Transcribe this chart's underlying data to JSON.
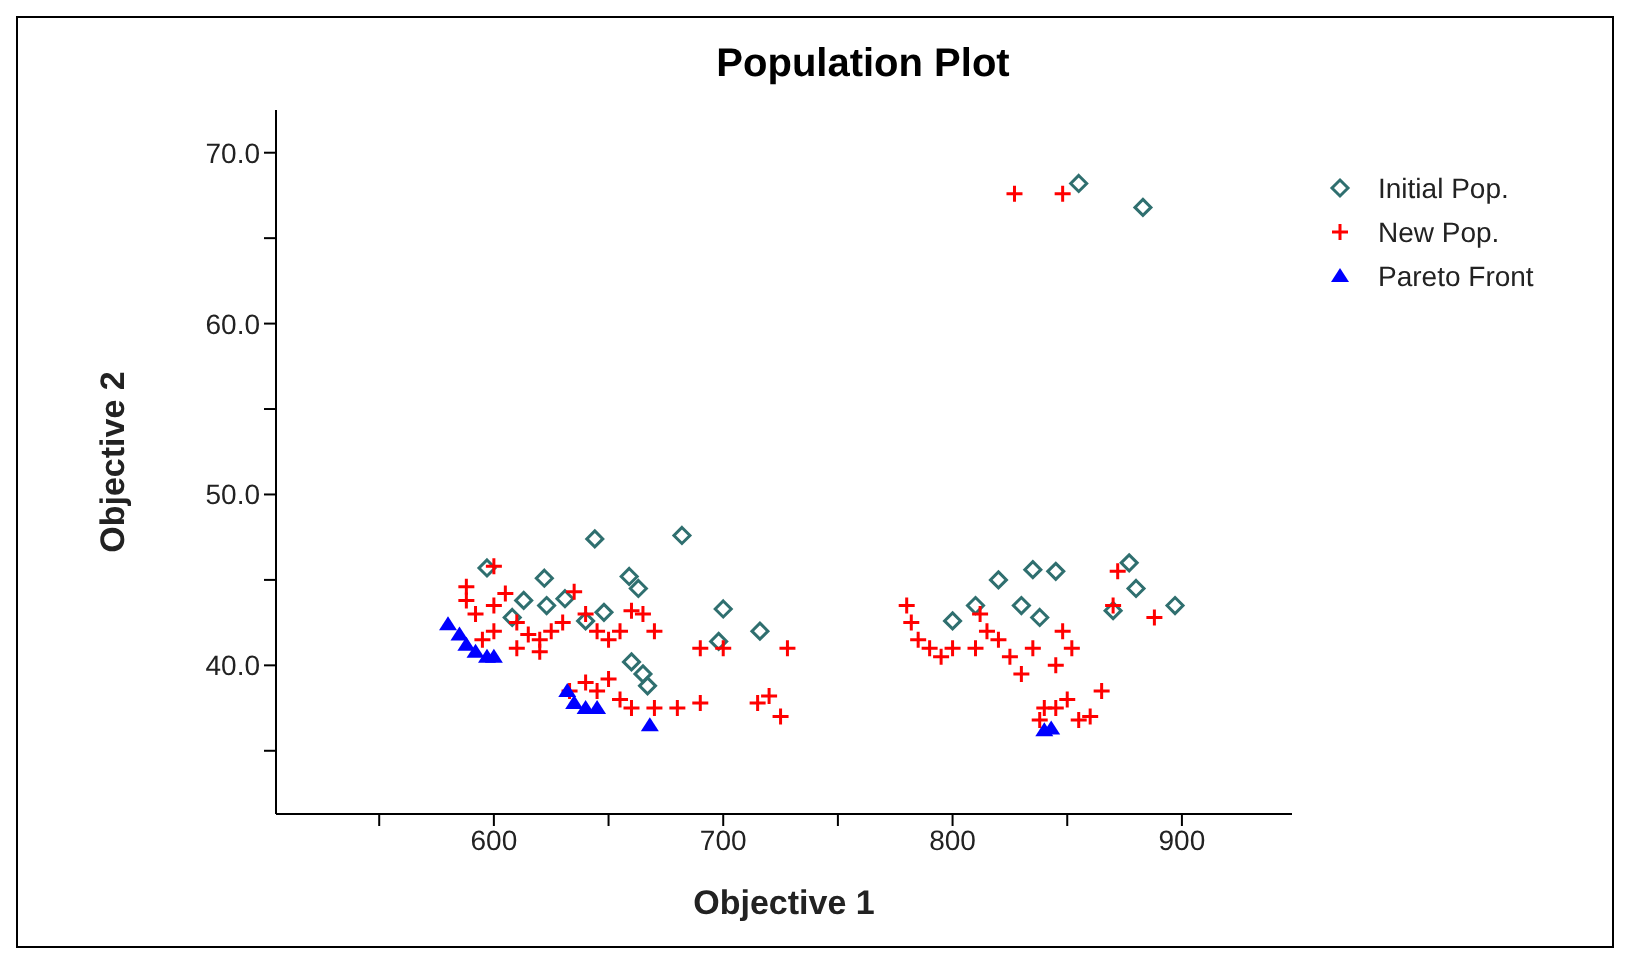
{
  "chart_data": {
    "type": "scatter",
    "title": "Population Plot",
    "xlabel": "Objective 1",
    "ylabel": "Objective 2",
    "xlim": [
      505,
      948
    ],
    "xticks": [
      {
        "value": 550,
        "label": null
      },
      600,
      {
        "value": 650,
        "label": null
      },
      700,
      {
        "value": 750,
        "label": null
      },
      800,
      {
        "value": 850,
        "label": null
      },
      900
    ],
    "ylim": [
      31.3,
      72.5
    ],
    "yticks": [
      {
        "value": 35,
        "label": null
      },
      {
        "value": 40,
        "label": "40.0"
      },
      {
        "value": 45,
        "label": null
      },
      {
        "value": 50,
        "label": "50.0"
      },
      {
        "value": 55,
        "label": null
      },
      {
        "value": 60,
        "label": "60.0"
      },
      {
        "value": 65,
        "label": null
      },
      {
        "value": 70,
        "label": "70.0"
      }
    ],
    "grid": false,
    "legend": "top right",
    "series": [
      {
        "name": "Initial Pop.",
        "color": "#2f6f6f",
        "marker": "diamond",
        "x": [
          855,
          883,
          597,
          622,
          644,
          682,
          659,
          663,
          631,
          613,
          648,
          640,
          700,
          698,
          716,
          660,
          665,
          667,
          623,
          608,
          800,
          810,
          820,
          830,
          835,
          845,
          838,
          877,
          880,
          870,
          897
        ],
        "values": [
          68.2,
          66.8,
          45.7,
          45.1,
          47.4,
          47.6,
          45.2,
          44.5,
          43.9,
          43.8,
          43.1,
          42.6,
          43.3,
          41.4,
          42.0,
          40.2,
          39.5,
          38.8,
          43.5,
          42.8,
          42.6,
          43.5,
          45.0,
          43.5,
          45.6,
          45.5,
          42.8,
          46.0,
          44.5,
          43.2,
          43.5
        ]
      },
      {
        "name": "New Pop.",
        "color": "#ff0000",
        "marker": "cross",
        "x": [
          827,
          848,
          588,
          588,
          592,
          600,
          605,
          610,
          615,
          620,
          625,
          630,
          635,
          640,
          645,
          650,
          655,
          660,
          665,
          670,
          600,
          610,
          620,
          645,
          655,
          660,
          670,
          680,
          690,
          700,
          690,
          715,
          720,
          725,
          728,
          640,
          650,
          633,
          600,
          595,
          780,
          782,
          785,
          790,
          795,
          800,
          810,
          815,
          812,
          820,
          825,
          830,
          835,
          840,
          838,
          845,
          850,
          855,
          860,
          865,
          848,
          852,
          870,
          872,
          888,
          845
        ],
        "values": [
          67.6,
          67.6,
          44.6,
          43.8,
          43.0,
          43.5,
          44.2,
          42.5,
          41.8,
          41.5,
          42.0,
          42.5,
          44.3,
          43.0,
          42.0,
          41.5,
          42.0,
          43.2,
          43.0,
          42.0,
          45.8,
          41.0,
          40.8,
          38.5,
          38.0,
          37.5,
          37.5,
          37.5,
          37.8,
          41.0,
          41.0,
          37.8,
          38.2,
          37.0,
          41.0,
          39.0,
          39.2,
          38.5,
          42.0,
          41.5,
          43.5,
          42.5,
          41.5,
          41.0,
          40.5,
          41.0,
          41.0,
          42.0,
          43.0,
          41.5,
          40.5,
          39.5,
          41.0,
          37.5,
          36.8,
          37.5,
          38.0,
          36.8,
          37.0,
          38.5,
          42.0,
          41.0,
          43.5,
          45.5,
          42.8,
          40.0
        ]
      },
      {
        "name": "Pareto Front",
        "color": "#0000ff",
        "marker": "triangle",
        "x": [
          580,
          585,
          588,
          592,
          597,
          600,
          632,
          635,
          640,
          645,
          668,
          840,
          843
        ],
        "values": [
          42.4,
          41.8,
          41.2,
          40.8,
          40.5,
          40.5,
          38.5,
          37.8,
          37.5,
          37.5,
          36.5,
          36.2,
          36.3
        ]
      }
    ]
  }
}
